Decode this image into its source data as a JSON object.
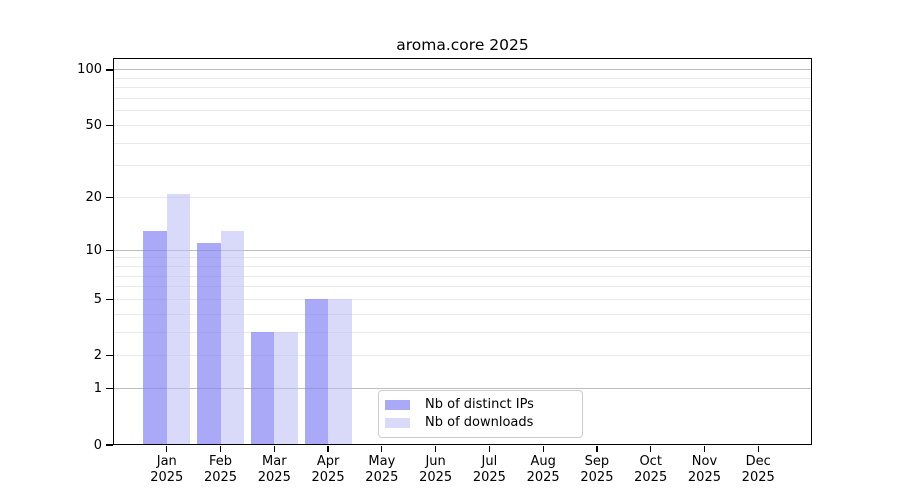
{
  "chart_data": {
    "type": "bar",
    "title": "aroma.core 2025",
    "categories": [
      "Jan 2025",
      "Feb 2025",
      "Mar 2025",
      "Apr 2025",
      "May 2025",
      "Jun 2025",
      "Jul 2025",
      "Aug 2025",
      "Sep 2025",
      "Oct 2025",
      "Nov 2025",
      "Dec 2025"
    ],
    "series": [
      {
        "name": "Nb of distinct IPs",
        "color": "rgba(130,130,243,0.69)",
        "values": [
          13,
          11,
          3,
          5,
          0,
          0,
          0,
          0,
          0,
          0,
          0,
          0
        ]
      },
      {
        "name": "Nb of downloads",
        "color": "rgba(188,188,246,0.57)",
        "values": [
          21,
          13,
          3,
          5,
          0,
          0,
          0,
          0,
          0,
          0,
          0,
          0
        ]
      }
    ],
    "xlabel": "",
    "ylabel": "",
    "yscale": "log10(1+x)",
    "ylim": [
      0,
      114
    ],
    "yticks": [
      100,
      50,
      20,
      10,
      5,
      2,
      1,
      0
    ],
    "grid": {
      "major_at": [
        1,
        10,
        100
      ],
      "minor_at": [
        2,
        3,
        4,
        5,
        6,
        7,
        8,
        9,
        20,
        30,
        40,
        50,
        60,
        70,
        80,
        90
      ],
      "major_color": "#bdbdbd",
      "minor_color": "#e9e9e9"
    },
    "legend_position": "inside-bottom-center",
    "axis_color": "#000000"
  }
}
